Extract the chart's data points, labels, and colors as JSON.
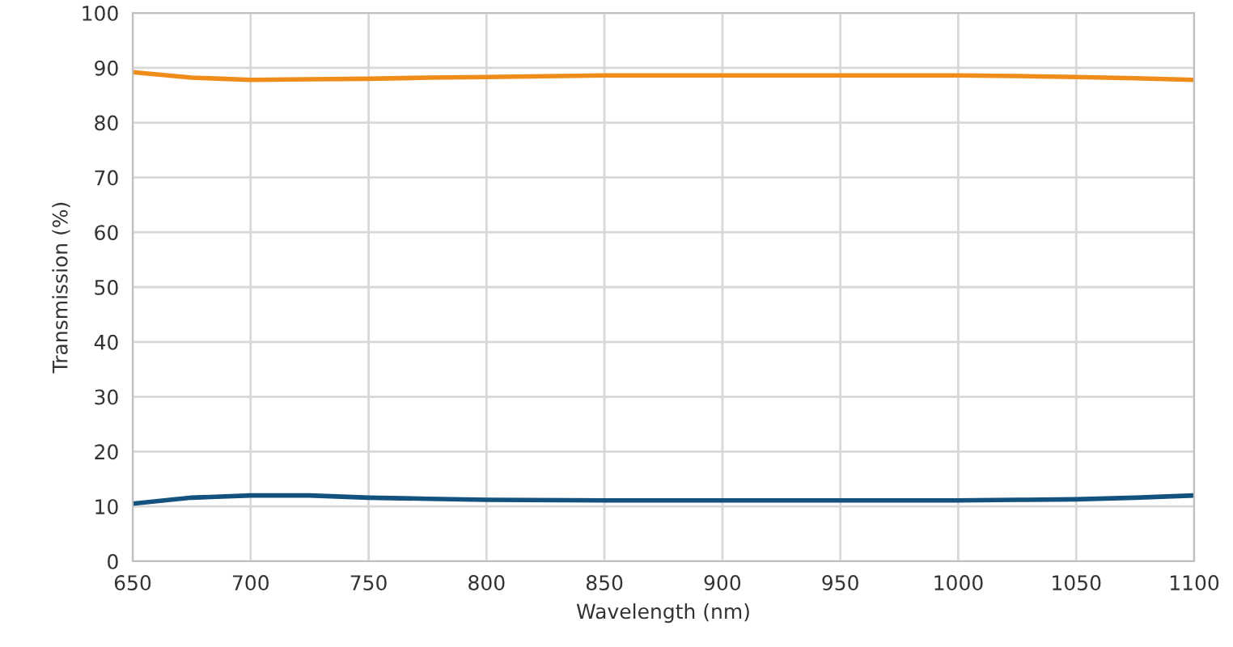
{
  "chart_data": {
    "type": "line",
    "xlabel": "Wavelength (nm)",
    "ylabel": "Transmission (%)",
    "x": [
      650,
      675,
      700,
      725,
      750,
      775,
      800,
      850,
      900,
      950,
      1000,
      1025,
      1050,
      1075,
      1100
    ],
    "series": [
      {
        "color": "#f08c1a",
        "values": [
          89.2,
          88.2,
          87.8,
          87.9,
          88.0,
          88.2,
          88.3,
          88.6,
          88.6,
          88.6,
          88.6,
          88.5,
          88.3,
          88.1,
          87.8
        ]
      },
      {
        "color": "#13527f",
        "values": [
          10.5,
          11.6,
          12.0,
          12.0,
          11.6,
          11.4,
          11.2,
          11.1,
          11.1,
          11.1,
          11.1,
          11.2,
          11.3,
          11.6,
          12.0
        ]
      }
    ],
    "xlim": [
      650,
      1100
    ],
    "xticks": [
      650,
      700,
      750,
      800,
      850,
      900,
      950,
      1000,
      1050,
      1100
    ],
    "ylim": [
      0,
      100
    ],
    "yticks": [
      0,
      10,
      20,
      30,
      40,
      50,
      60,
      70,
      80,
      90,
      100
    ],
    "grid": true,
    "marker": "none",
    "line_style": "solid"
  }
}
